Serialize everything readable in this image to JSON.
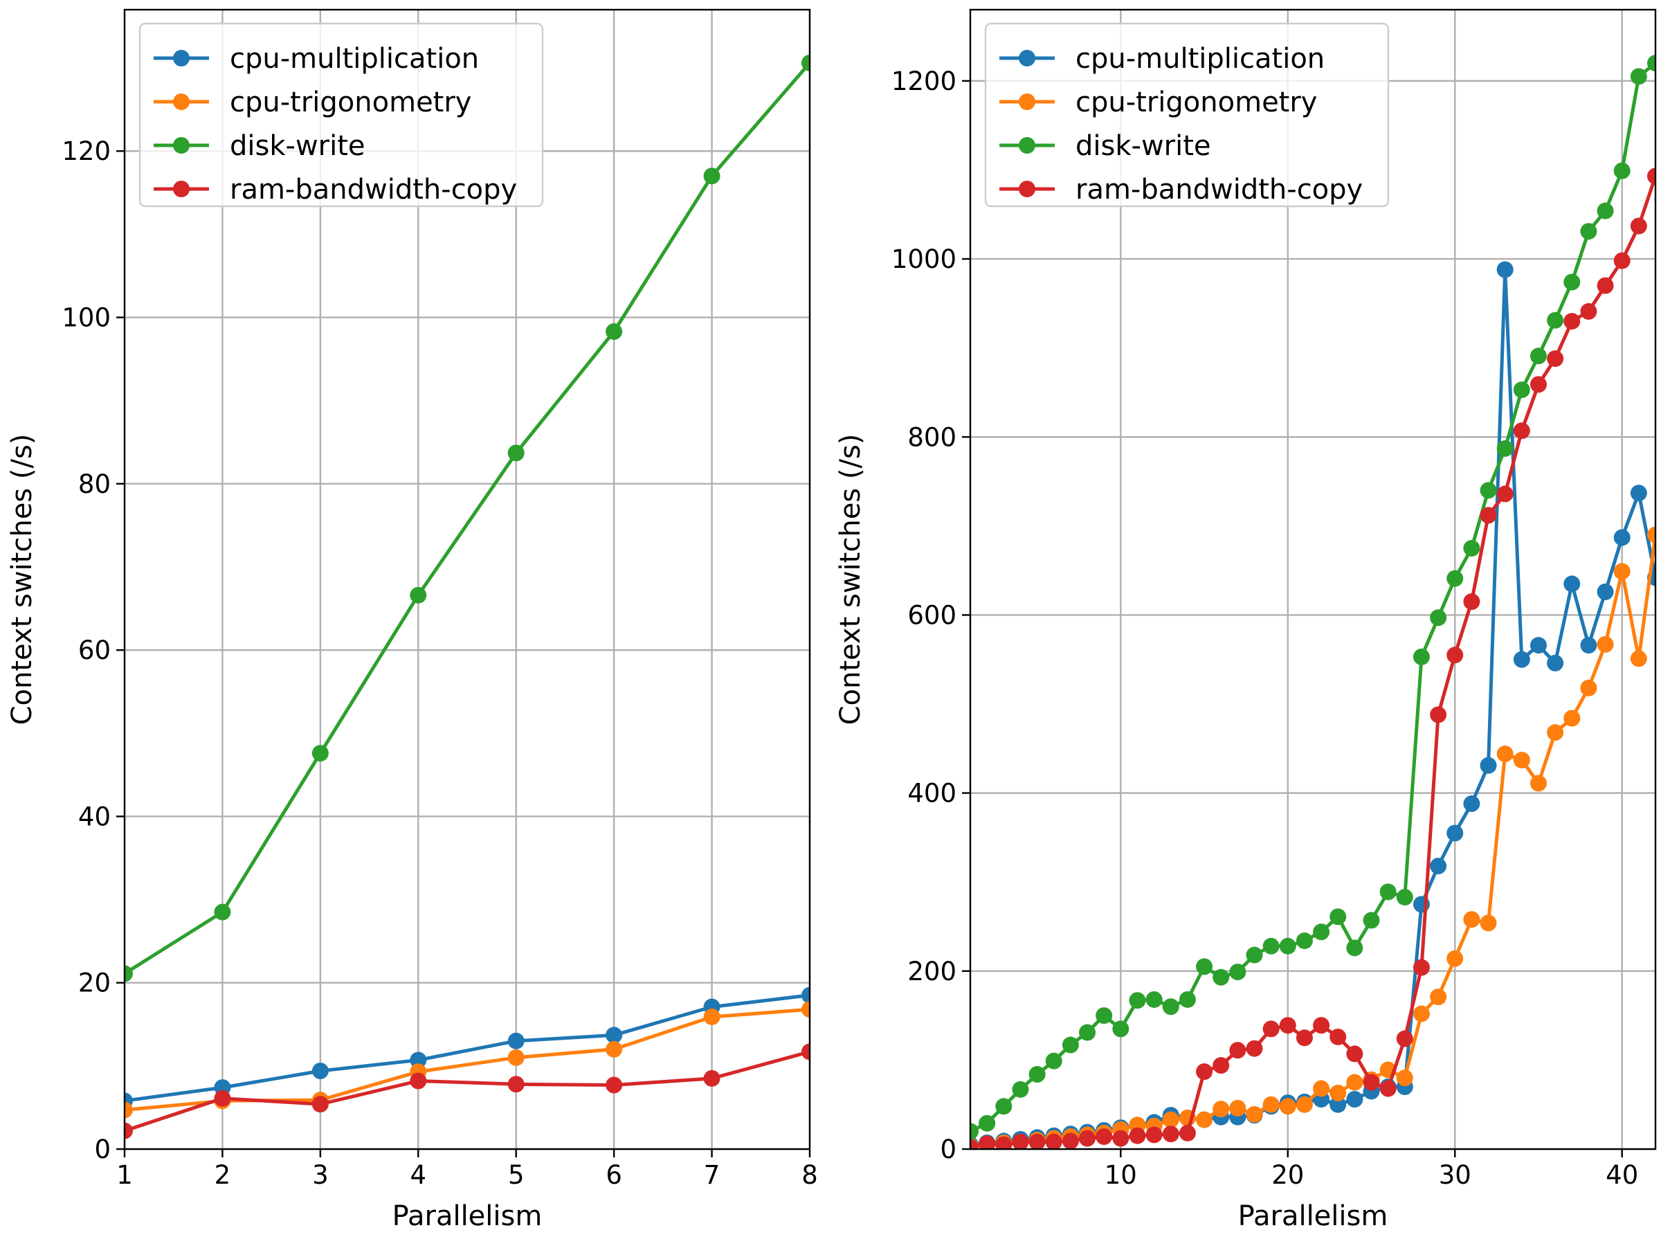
{
  "chart_data": [
    {
      "type": "line",
      "xlabel": "Parallelism",
      "ylabel": "Context switches (/s)",
      "xlim": [
        1,
        8
      ],
      "ylim": [
        0,
        137
      ],
      "xticks": [
        1,
        2,
        3,
        4,
        5,
        6,
        7,
        8
      ],
      "yticks": [
        0,
        20,
        40,
        60,
        80,
        100,
        120
      ],
      "grid": true,
      "legend": "top-left",
      "x": [
        1,
        2,
        3,
        4,
        5,
        6,
        7,
        8
      ],
      "series": [
        {
          "name": "cpu-multiplication",
          "color": "#1f77b4",
          "values": [
            5.8,
            7.4,
            9.4,
            10.7,
            13.0,
            13.7,
            17.1,
            18.5
          ]
        },
        {
          "name": "cpu-trigonometry",
          "color": "#ff7f0e",
          "values": [
            4.7,
            5.8,
            5.9,
            9.3,
            11.0,
            12.0,
            15.9,
            16.8
          ]
        },
        {
          "name": "disk-write",
          "color": "#2ca02c",
          "values": [
            21.1,
            28.5,
            47.6,
            66.6,
            83.7,
            98.3,
            117.0,
            130.6
          ]
        },
        {
          "name": "ram-bandwidth-copy",
          "color": "#d62728",
          "values": [
            2.2,
            6.1,
            5.4,
            8.2,
            7.8,
            7.7,
            8.5,
            11.7
          ]
        }
      ]
    },
    {
      "type": "line",
      "xlabel": "Parallelism",
      "ylabel": "Context switches (/s)",
      "xlim": [
        1,
        42
      ],
      "ylim": [
        0,
        1280
      ],
      "xticks": [
        10,
        20,
        30,
        40
      ],
      "yticks": [
        0,
        200,
        400,
        600,
        800,
        1000,
        1200
      ],
      "grid": true,
      "legend": "top-left",
      "x": [
        1,
        2,
        3,
        4,
        5,
        6,
        7,
        8,
        9,
        10,
        11,
        12,
        13,
        14,
        15,
        16,
        17,
        18,
        19,
        20,
        21,
        22,
        23,
        24,
        25,
        26,
        27,
        28,
        29,
        30,
        31,
        32,
        33,
        34,
        35,
        36,
        37,
        38,
        39,
        40,
        41,
        42
      ],
      "series": [
        {
          "name": "cpu-multiplication",
          "color": "#1f77b4",
          "values": [
            5,
            7,
            9,
            11,
            13,
            15,
            17,
            19,
            21,
            24,
            27,
            30,
            38,
            35,
            33,
            36,
            36,
            38,
            48,
            52,
            53,
            56,
            50,
            56,
            65,
            70,
            70,
            275,
            318,
            355,
            388,
            431,
            988,
            550,
            566,
            546,
            635,
            566,
            626,
            687,
            737,
            642
          ]
        },
        {
          "name": "cpu-trigonometry",
          "color": "#ff7f0e",
          "values": [
            3,
            5,
            7,
            8,
            10,
            12,
            14,
            16,
            18,
            22,
            27,
            26,
            33,
            35,
            33,
            45,
            46,
            39,
            50,
            48,
            50,
            68,
            63,
            75,
            78,
            89,
            80,
            152,
            171,
            214,
            258,
            254,
            444,
            437,
            411,
            468,
            484,
            518,
            567,
            649,
            551,
            690
          ]
        },
        {
          "name": "disk-write",
          "color": "#2ca02c",
          "values": [
            20,
            29,
            48,
            67,
            84,
            99,
            117,
            131,
            150,
            135,
            167,
            168,
            160,
            168,
            205,
            193,
            199,
            218,
            228,
            228,
            234,
            244,
            261,
            226,
            257,
            289,
            283,
            553,
            597,
            641,
            675,
            740,
            787,
            853,
            891,
            931,
            974,
            1031,
            1054,
            1099,
            1205,
            1220
          ]
        },
        {
          "name": "ram-bandwidth-copy",
          "color": "#d62728",
          "values": [
            2,
            6,
            5,
            8,
            8,
            8,
            9,
            12,
            14,
            12,
            15,
            16,
            17,
            18,
            87,
            94,
            111,
            113,
            135,
            139,
            125,
            139,
            126,
            107,
            75,
            68,
            124,
            204,
            488,
            555,
            615,
            712,
            736,
            807,
            859,
            888,
            930,
            941,
            970,
            998,
            1037,
            1093
          ]
        }
      ]
    }
  ]
}
